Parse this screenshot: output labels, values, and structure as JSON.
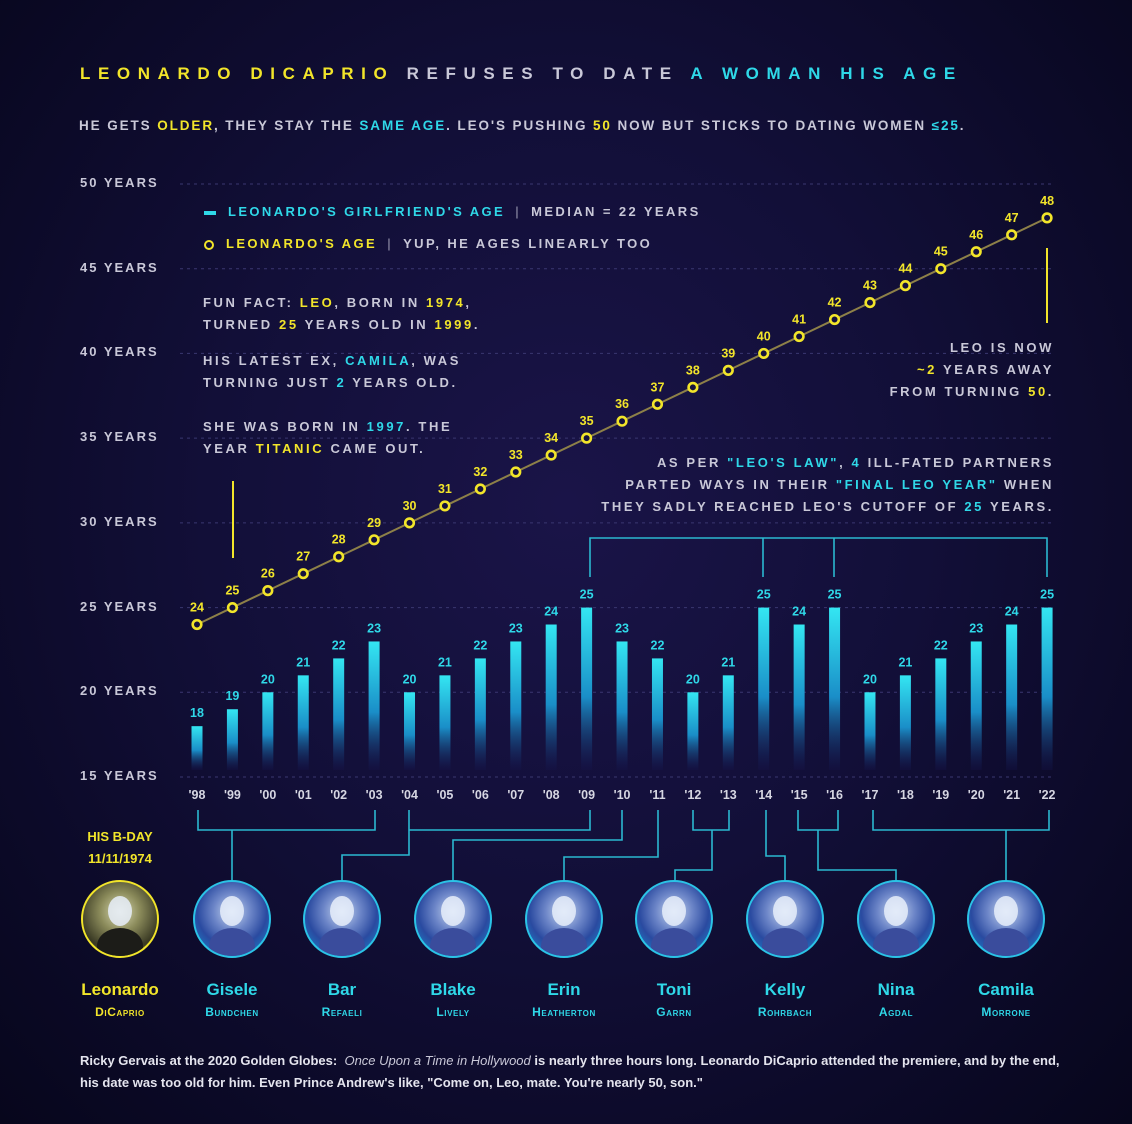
{
  "colors": {
    "yellow": "#f2e52a",
    "cyan": "#2fd8e8",
    "white": "#c9c8d8",
    "background": "#120f38"
  },
  "title": [
    {
      "text": "LEONARDO DICAPRIO",
      "color": "yellow"
    },
    {
      "text": " REFUSES TO DATE ",
      "color": "white"
    },
    {
      "text": "A WOMAN HIS AGE",
      "color": "cyan"
    }
  ],
  "subtitle": [
    {
      "text": "HE GETS ",
      "color": "white"
    },
    {
      "text": "OLDER",
      "color": "yellow"
    },
    {
      "text": ", THEY STAY THE ",
      "color": "white"
    },
    {
      "text": "SAME AGE",
      "color": "cyan"
    },
    {
      "text": ". LEO'S PUSHING ",
      "color": "white"
    },
    {
      "text": "50",
      "color": "yellow"
    },
    {
      "text": " NOW BUT STICKS TO DATING WOMEN ",
      "color": "white"
    },
    {
      "text": "≤25",
      "color": "cyan"
    },
    {
      "text": ".",
      "color": "white"
    }
  ],
  "legend": {
    "girlfriend": {
      "label": "LEONARDO'S GIRLFRIEND'S AGE",
      "note": "MEDIAN = 22 YEARS",
      "separator": "|"
    },
    "leo": {
      "label": "LEONARDO'S AGE",
      "note": "YUP, HE AGES LINEARLY TOO",
      "separator": "|"
    }
  },
  "notes": {
    "fun_fact": [
      [
        {
          "text": "FUN FACT: ",
          "color": "white"
        },
        {
          "text": "LEO",
          "color": "yellow"
        },
        {
          "text": ", BORN IN ",
          "color": "white"
        },
        {
          "text": "1974",
          "color": "yellow"
        },
        {
          "text": ",",
          "color": "white"
        }
      ],
      [
        {
          "text": "TURNED ",
          "color": "white"
        },
        {
          "text": "25",
          "color": "yellow"
        },
        {
          "text": " YEARS OLD IN ",
          "color": "white"
        },
        {
          "text": "1999",
          "color": "yellow"
        },
        {
          "text": ".",
          "color": "white"
        }
      ]
    ],
    "camila": [
      [
        {
          "text": "HIS LATEST EX, ",
          "color": "white"
        },
        {
          "text": "CAMILA",
          "color": "cyan"
        },
        {
          "text": ", WAS",
          "color": "white"
        }
      ],
      [
        {
          "text": "TURNING JUST ",
          "color": "white"
        },
        {
          "text": "2",
          "color": "cyan"
        },
        {
          "text": " YEARS OLD.",
          "color": "white"
        }
      ]
    ],
    "born": [
      [
        {
          "text": "SHE WAS BORN IN ",
          "color": "white"
        },
        {
          "text": "1997",
          "color": "cyan"
        },
        {
          "text": ". THE",
          "color": "white"
        }
      ],
      [
        {
          "text": "YEAR ",
          "color": "white"
        },
        {
          "text": "TITANIC",
          "color": "yellow"
        },
        {
          "text": " CAME OUT.",
          "color": "white"
        }
      ]
    ],
    "leo_now": [
      [
        {
          "text": "LEO IS NOW",
          "color": "white"
        }
      ],
      [
        {
          "text": "~2",
          "color": "yellow"
        },
        {
          "text": " YEARS AWAY",
          "color": "white"
        }
      ],
      [
        {
          "text": "FROM TURNING ",
          "color": "white"
        },
        {
          "text": "50",
          "color": "yellow"
        },
        {
          "text": ".",
          "color": "white"
        }
      ]
    ],
    "leos_law": [
      [
        {
          "text": "AS PER ",
          "color": "white"
        },
        {
          "text": "\"LEO'S LAW\"",
          "color": "cyan"
        },
        {
          "text": ", ",
          "color": "white"
        },
        {
          "text": "4",
          "color": "cyan"
        },
        {
          "text": " ILL-FATED PARTNERS",
          "color": "white"
        }
      ],
      [
        {
          "text": "PARTED WAYS IN THEIR ",
          "color": "white"
        },
        {
          "text": "\"FINAL LEO YEAR\"",
          "color": "cyan"
        },
        {
          "text": " WHEN",
          "color": "white"
        }
      ],
      [
        {
          "text": "THEY SADLY REACHED LEO'S CUTOFF OF ",
          "color": "white"
        },
        {
          "text": "25",
          "color": "cyan"
        },
        {
          "text": " YEARS.",
          "color": "white"
        }
      ]
    ]
  },
  "bday": {
    "label": "HIS B-DAY",
    "date": "11/11/1974"
  },
  "chart_data": {
    "type": "bar",
    "categories": [
      "'98",
      "'99",
      "'00",
      "'01",
      "'02",
      "'03",
      "'04",
      "'05",
      "'06",
      "'07",
      "'08",
      "'09",
      "'10",
      "'11",
      "'12",
      "'13",
      "'14",
      "'15",
      "'16",
      "'17",
      "'18",
      "'19",
      "'20",
      "'21",
      "'22"
    ],
    "series": [
      {
        "name": "LEONARDO'S GIRLFRIEND'S AGE",
        "type": "bar",
        "color": "#2fd8e8",
        "values": [
          18,
          19,
          20,
          21,
          22,
          23,
          20,
          21,
          22,
          23,
          24,
          25,
          23,
          22,
          20,
          21,
          25,
          24,
          25,
          20,
          21,
          22,
          23,
          24,
          25
        ]
      },
      {
        "name": "LEONARDO'S AGE",
        "type": "line",
        "color": "#f2e52a",
        "values": [
          24,
          25,
          26,
          27,
          28,
          29,
          30,
          31,
          32,
          33,
          34,
          35,
          36,
          37,
          38,
          39,
          40,
          41,
          42,
          43,
          44,
          45,
          46,
          47,
          48
        ]
      }
    ],
    "yticks": [
      "50 YEARS",
      "45 YEARS",
      "40 YEARS",
      "35 YEARS",
      "30 YEARS",
      "25 YEARS",
      "20 YEARS",
      "15 YEARS"
    ],
    "ylim": [
      15,
      50
    ],
    "grid": true,
    "legend": "top-left"
  },
  "people": [
    {
      "first": "Leonardo",
      "last": "DiCaprio"
    },
    {
      "first": "Gisele",
      "last": "Bundchen"
    },
    {
      "first": "Bar",
      "last": "Refaeli"
    },
    {
      "first": "Blake",
      "last": "Lively"
    },
    {
      "first": "Erin",
      "last": "Heatherton"
    },
    {
      "first": "Toni",
      "last": "Garrn"
    },
    {
      "first": "Kelly",
      "last": "Rohrbach"
    },
    {
      "first": "Nina",
      "last": "Agdal"
    },
    {
      "first": "Camila",
      "last": "Morrone"
    }
  ],
  "footer": {
    "speaker": "Ricky Gervais at the 2020 Golden Globes:",
    "film": "Once Upon a Time in Hollywood",
    "quote": " is nearly three hours long. Leonardo DiCaprio attended the premiere, and by the end, his date was too old for him.  Even Prince Andrew's like, \"Come on, Leo, mate. You're nearly 50, son.\""
  }
}
